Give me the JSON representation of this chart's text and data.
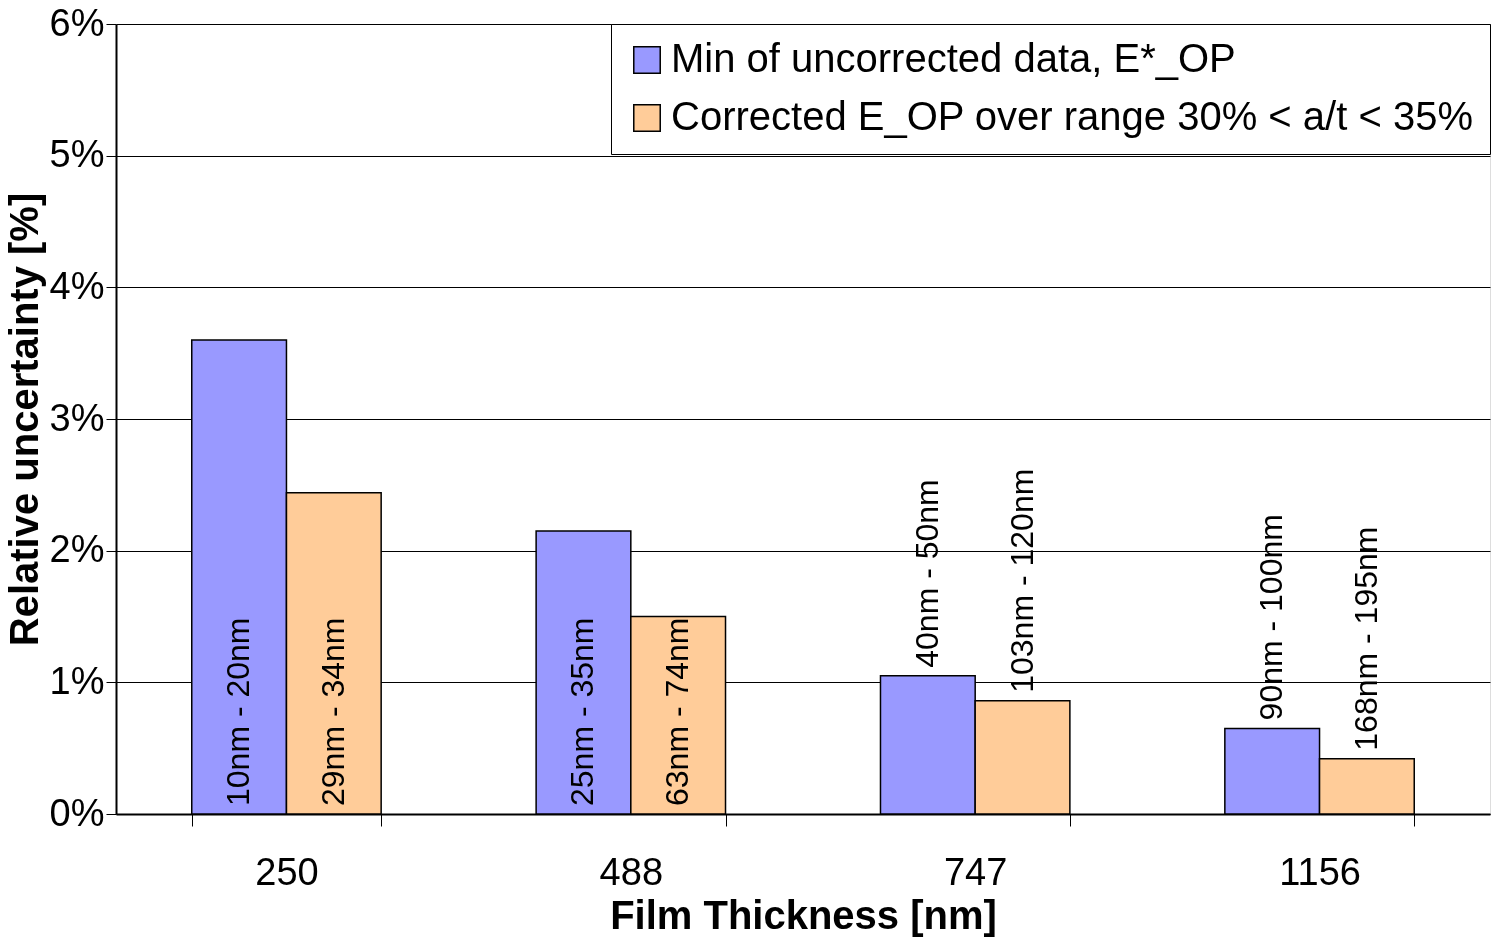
{
  "chart_data": {
    "type": "bar",
    "xlabel": "Film Thickness [nm]",
    "ylabel": "Relative uncertainty  [%]",
    "categories": [
      "250",
      "488",
      "747",
      "1156"
    ],
    "series": [
      {
        "name": "Min of uncorrected data, E*_OP",
        "color": "#9999ff",
        "values": [
          3.6,
          2.15,
          1.05,
          0.65
        ]
      },
      {
        "name": "Corrected E_OP over range 30% < a/t < 35%",
        "color": "#ffcc99",
        "values": [
          2.44,
          1.5,
          0.86,
          0.42
        ]
      }
    ],
    "annotations": [
      {
        "text": "10nm - 20nm",
        "x": "250",
        "y": 0
      },
      {
        "text": "29nm - 34nm",
        "x": "250",
        "y": 0
      },
      {
        "text": "25nm - 35nm",
        "x": "488",
        "y": 0
      },
      {
        "text": "63nm - 74nm",
        "x": "488",
        "y": 0
      },
      {
        "text": "40nm - 50nm",
        "x": "747",
        "y": 1.05
      },
      {
        "text": "103nm - 120nm",
        "x": "747",
        "y": 0.86
      },
      {
        "text": "90nm - 100nm",
        "x": "1156",
        "y": 0.65
      },
      {
        "text": "168nm - 195nm",
        "x": "1156",
        "y": 0.42
      }
    ],
    "ylim": [
      0,
      6
    ],
    "yticks": [
      {
        "value": 0,
        "label": "0%"
      },
      {
        "value": 1,
        "label": "1%"
      },
      {
        "value": 2,
        "label": "2%"
      },
      {
        "value": 3,
        "label": "3%"
      },
      {
        "value": 4,
        "label": "4%"
      },
      {
        "value": 5,
        "label": "5%"
      },
      {
        "value": 6,
        "label": "6%"
      }
    ],
    "grid": "y",
    "legend": "top right"
  }
}
